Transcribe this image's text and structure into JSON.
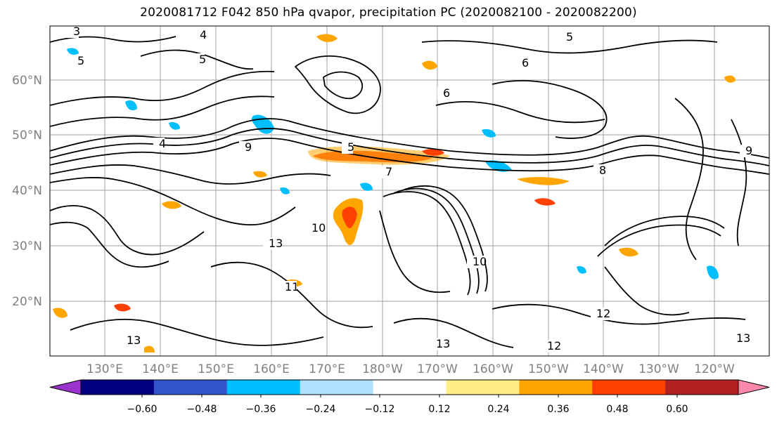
{
  "title": "2020081712 F042 850 hPa qvapor, precipitation PC (2020082100 - 2020082200)",
  "lat_labels": [
    "60°N",
    "50°N",
    "40°N",
    "30°N",
    "20°N"
  ],
  "lon_labels": [
    "130°E",
    "140°E",
    "150°E",
    "160°E",
    "170°E",
    "180°W",
    "170°W",
    "160°W",
    "150°W",
    "140°W",
    "130°W",
    "120°W"
  ],
  "colorbar": {
    "colors": [
      "#9933cc",
      "#000080",
      "#3355cc",
      "#00bfff",
      "#b0e0ff",
      "#ffffff",
      "#ffee88",
      "#ffa500",
      "#ff4000",
      "#b22222",
      "#ff88aa"
    ],
    "tick_labels": [
      "−0.60",
      "−0.48",
      "−0.36",
      "−0.24",
      "−0.12",
      "0.12",
      "0.24",
      "0.36",
      "0.48",
      "0.60"
    ]
  },
  "contour_labels": [
    "3",
    "4",
    "5",
    "5",
    "6",
    "6",
    "7",
    "8",
    "9",
    "9",
    "10",
    "10",
    "11",
    "12",
    "12",
    "13",
    "13",
    "13",
    "13",
    "4",
    "5",
    "5"
  ]
}
